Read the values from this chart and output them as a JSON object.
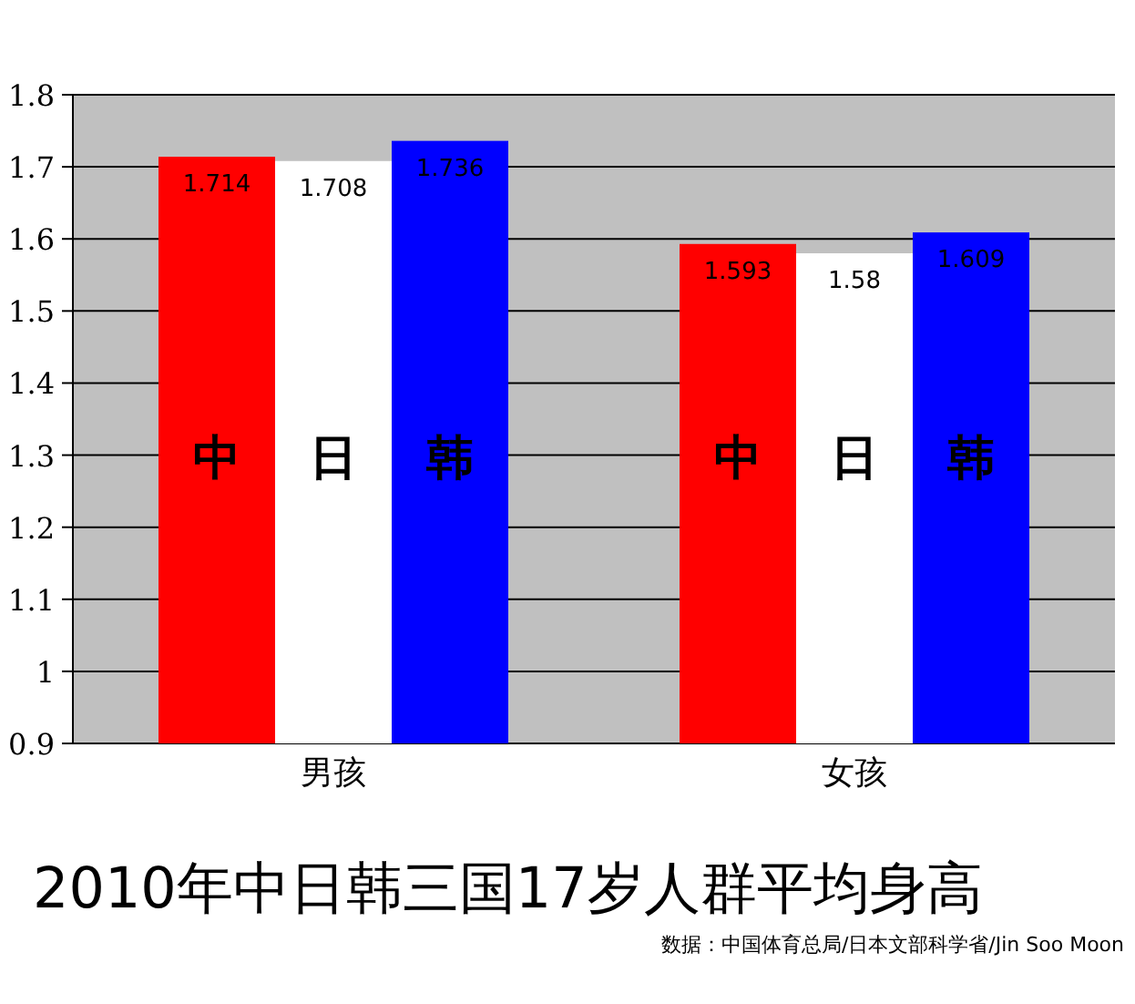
{
  "chart_data": {
    "type": "bar",
    "title": "2010年中日韩三国17岁人群平均身高",
    "categories": [
      "男孩",
      "女孩"
    ],
    "series": [
      {
        "name": "中",
        "color": "#ff0000",
        "values": [
          1.714,
          1.593
        ]
      },
      {
        "name": "日",
        "color": "#ffffff",
        "values": [
          1.708,
          1.58
        ]
      },
      {
        "name": "韩",
        "color": "#0000ff",
        "values": [
          1.736,
          1.609
        ]
      }
    ],
    "ylim": [
      0.9,
      1.8
    ],
    "yticks": [
      0.9,
      1,
      1.1,
      1.2,
      1.3,
      1.4,
      1.5,
      1.6,
      1.7,
      1.8
    ],
    "grid": "y",
    "data_labels": true,
    "legend": false,
    "annotations": [
      "数据：中国体育总局/日本文部科学省/Jin Soo Moon"
    ]
  }
}
